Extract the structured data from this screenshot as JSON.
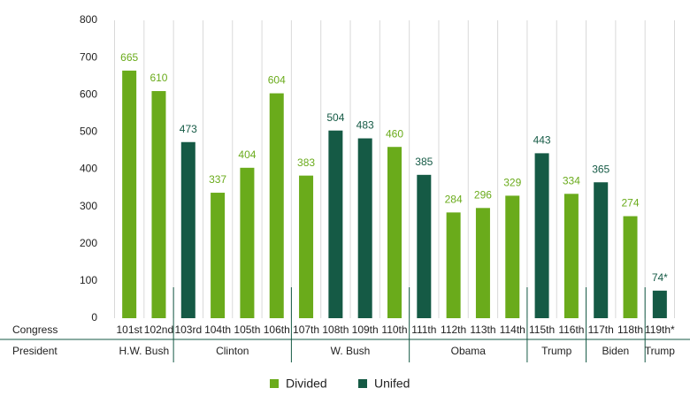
{
  "chart_data": {
    "type": "bar",
    "row_labels": [
      "Congress",
      "President"
    ],
    "categories": [
      "101st",
      "102nd",
      "103rd",
      "104th",
      "105th",
      "106th",
      "107th",
      "108th",
      "109th",
      "110th",
      "111th",
      "112th",
      "113th",
      "114th",
      "115th",
      "116th",
      "117th",
      "118th",
      "119th*"
    ],
    "presidents": [
      "H.W. Bush",
      null,
      "Clinton",
      null,
      null,
      null,
      "W. Bush",
      null,
      null,
      null,
      "Obama",
      null,
      null,
      null,
      "Trump",
      null,
      "Biden",
      null,
      "Trump"
    ],
    "series": [
      {
        "name": "Divided",
        "color": "#6aab1b",
        "values": [
          665,
          610,
          null,
          337,
          404,
          604,
          383,
          null,
          null,
          460,
          null,
          284,
          296,
          329,
          null,
          334,
          null,
          274,
          null
        ]
      },
      {
        "name": "Unifed",
        "color": "#155a45",
        "values": [
          null,
          null,
          473,
          null,
          null,
          null,
          null,
          504,
          483,
          null,
          385,
          null,
          null,
          null,
          443,
          null,
          365,
          null,
          74
        ],
        "value_labels": [
          null,
          null,
          "473",
          null,
          null,
          null,
          null,
          "504",
          "483",
          null,
          "385",
          null,
          null,
          null,
          "443",
          null,
          "365",
          null,
          "74*"
        ]
      }
    ],
    "ylim": [
      0,
      800
    ],
    "yticks": [
      0,
      100,
      200,
      300,
      400,
      500,
      600,
      700,
      800
    ],
    "grid": true,
    "legend": "bottom"
  }
}
